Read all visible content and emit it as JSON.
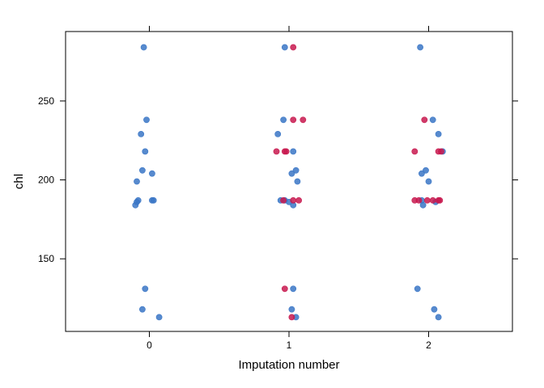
{
  "chart_data": {
    "type": "scatter",
    "title": "",
    "xlabel": "Imputation number",
    "ylabel": "chl",
    "xlim": [
      -0.6,
      2.6
    ],
    "ylim": [
      104,
      294
    ],
    "x_ticks": [
      0,
      1,
      2
    ],
    "x_tick_labels": [
      "0",
      "1",
      "2"
    ],
    "y_ticks": [
      150,
      200,
      250
    ],
    "y_tick_labels": [
      "150",
      "200",
      "250"
    ],
    "grid": false,
    "legend": "none",
    "colors": {
      "observed": "#3a76c6",
      "imputed": "#c8194f"
    },
    "series": [
      {
        "kind": "observed",
        "points": [
          {
            "x": -0.04,
            "y": 284
          },
          {
            "x": -0.02,
            "y": 238
          },
          {
            "x": -0.06,
            "y": 229
          },
          {
            "x": -0.03,
            "y": 218
          },
          {
            "x": -0.05,
            "y": 206
          },
          {
            "x": 0.02,
            "y": 204
          },
          {
            "x": -0.09,
            "y": 199
          },
          {
            "x": -0.08,
            "y": 187
          },
          {
            "x": 0.02,
            "y": 187
          },
          {
            "x": 0.03,
            "y": 187
          },
          {
            "x": -0.09,
            "y": 186
          },
          {
            "x": -0.1,
            "y": 184
          },
          {
            "x": -0.03,
            "y": 131
          },
          {
            "x": -0.05,
            "y": 118
          },
          {
            "x": 0.07,
            "y": 113
          },
          {
            "x": 0.97,
            "y": 284
          },
          {
            "x": 0.96,
            "y": 238
          },
          {
            "x": 0.92,
            "y": 229
          },
          {
            "x": 1.03,
            "y": 218
          },
          {
            "x": 1.05,
            "y": 206
          },
          {
            "x": 1.02,
            "y": 204
          },
          {
            "x": 1.06,
            "y": 199
          },
          {
            "x": 0.94,
            "y": 187
          },
          {
            "x": 0.97,
            "y": 187
          },
          {
            "x": 1.0,
            "y": 186
          },
          {
            "x": 1.03,
            "y": 184
          },
          {
            "x": 1.03,
            "y": 131
          },
          {
            "x": 1.02,
            "y": 118
          },
          {
            "x": 1.05,
            "y": 113
          },
          {
            "x": 1.94,
            "y": 284
          },
          {
            "x": 2.03,
            "y": 238
          },
          {
            "x": 2.07,
            "y": 229
          },
          {
            "x": 2.1,
            "y": 218
          },
          {
            "x": 1.98,
            "y": 206
          },
          {
            "x": 1.95,
            "y": 204
          },
          {
            "x": 2.0,
            "y": 199
          },
          {
            "x": 1.95,
            "y": 187
          },
          {
            "x": 2.05,
            "y": 186
          },
          {
            "x": 1.96,
            "y": 184
          },
          {
            "x": 1.92,
            "y": 131
          },
          {
            "x": 2.04,
            "y": 118
          },
          {
            "x": 2.07,
            "y": 113
          }
        ]
      },
      {
        "kind": "imputed",
        "points": [
          {
            "x": 1.03,
            "y": 284
          },
          {
            "x": 1.03,
            "y": 238
          },
          {
            "x": 1.1,
            "y": 238
          },
          {
            "x": 0.91,
            "y": 218
          },
          {
            "x": 0.97,
            "y": 218
          },
          {
            "x": 0.98,
            "y": 218
          },
          {
            "x": 0.96,
            "y": 187
          },
          {
            "x": 1.03,
            "y": 187
          },
          {
            "x": 1.07,
            "y": 187
          },
          {
            "x": 0.97,
            "y": 131
          },
          {
            "x": 1.02,
            "y": 113
          },
          {
            "x": 1.97,
            "y": 238
          },
          {
            "x": 1.9,
            "y": 218
          },
          {
            "x": 2.07,
            "y": 218
          },
          {
            "x": 2.09,
            "y": 218
          },
          {
            "x": 1.9,
            "y": 187
          },
          {
            "x": 1.93,
            "y": 187
          },
          {
            "x": 1.99,
            "y": 187
          },
          {
            "x": 2.03,
            "y": 187
          },
          {
            "x": 2.07,
            "y": 187
          },
          {
            "x": 2.08,
            "y": 187
          }
        ]
      }
    ]
  }
}
